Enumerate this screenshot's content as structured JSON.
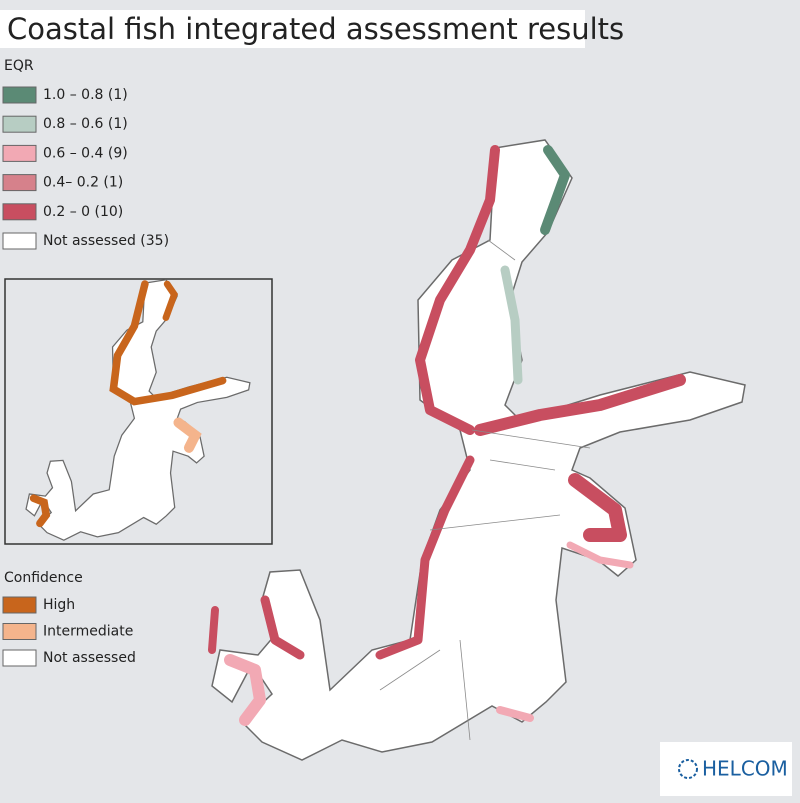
{
  "title": "Coastal fish integrated assessment results",
  "eqr_legend": {
    "title": "EQR",
    "items": [
      {
        "label": "1.0 – 0.8 (1)",
        "color": "#5b8a75"
      },
      {
        "label": "0.8 – 0.6 (1)",
        "color": "#b7cdc3"
      },
      {
        "label": "0.6 – 0.4 (9)",
        "color": "#f2a9b4"
      },
      {
        "label": "0.4– 0.2 (1)",
        "color": "#d6818b"
      },
      {
        "label": "0.2 – 0 (10)",
        "color": "#c84e60"
      },
      {
        "label": "Not assessed (35)",
        "color": "#ffffff"
      }
    ]
  },
  "confidence_legend": {
    "title": "Confidence",
    "items": [
      {
        "label": "High",
        "color": "#c8651c"
      },
      {
        "label": "Intermediate",
        "color": "#f4b48c"
      },
      {
        "label": "Not assessed",
        "color": "#ffffff"
      }
    ]
  },
  "logo": "HELCOM"
}
